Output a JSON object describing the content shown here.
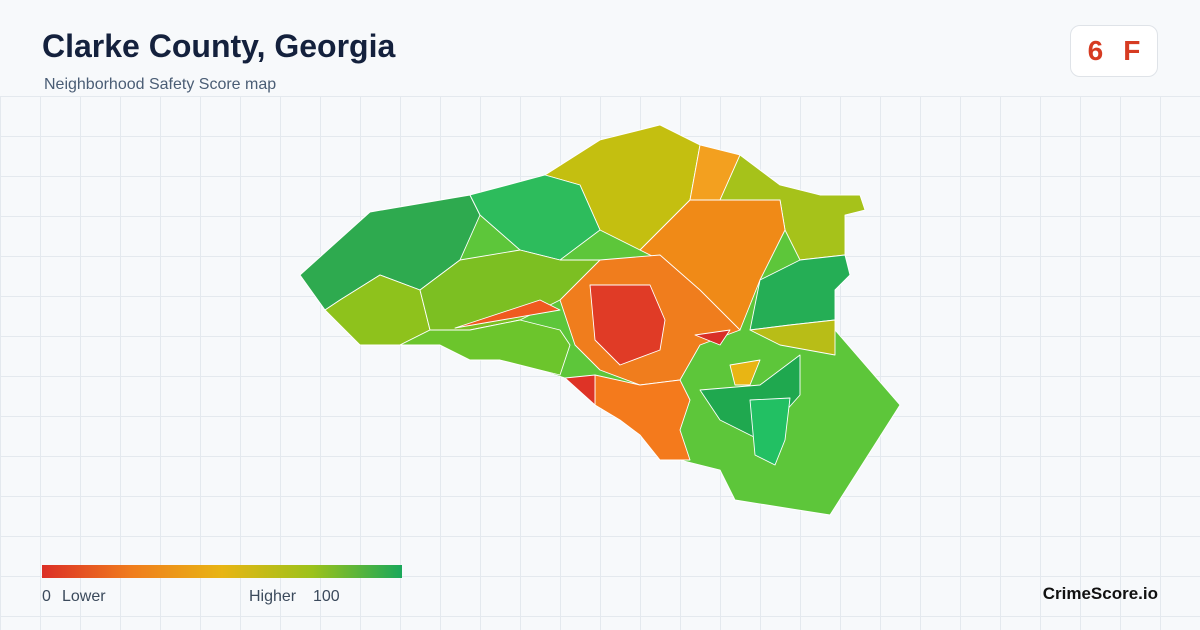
{
  "header": {
    "title": "Clarke County, Georgia",
    "subtitle": "Neighborhood Safety Score map"
  },
  "score": {
    "value": 6,
    "grade": "F"
  },
  "legend": {
    "min": 0,
    "min_label": "Lower",
    "max_label": "Higher",
    "max": 100
  },
  "brand": "CrimeScore.io"
}
